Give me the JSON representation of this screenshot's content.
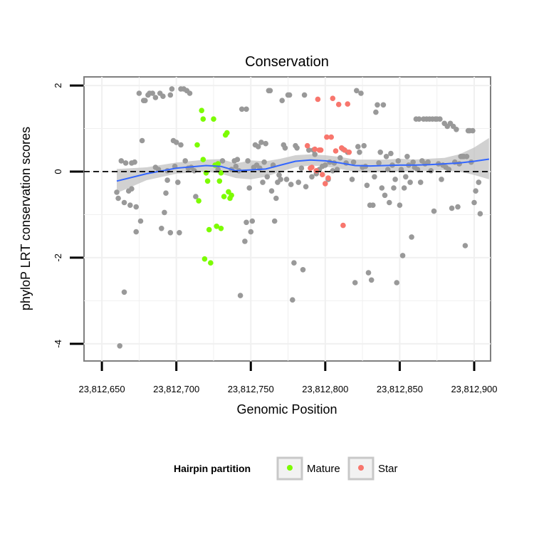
{
  "chart_data": {
    "type": "scatter",
    "title": "Conservation",
    "xlabel": "Genomic Position",
    "ylabel": "phyloP LRT conservation scores",
    "xlim": [
      23812638,
      23812911
    ],
    "ylim": [
      -4.4,
      2.2
    ],
    "x_ticks": [
      23812650,
      23812700,
      23812750,
      23812800,
      23812850,
      23812900
    ],
    "x_tick_labels": [
      "23,812,650",
      "23,812,700",
      "23,812,750",
      "23,812,800",
      "23,812,850",
      "23,812,900"
    ],
    "y_ticks": [
      -4,
      -2,
      0,
      2
    ],
    "y_tick_labels": [
      "-4",
      "-2",
      "0",
      "2"
    ],
    "grid": true,
    "reference_line": {
      "y": 0,
      "style": "dashed"
    },
    "legend": {
      "title": "Hairpin partition",
      "placement": "bottom",
      "entries": [
        {
          "label": "Mature",
          "color": "#7cfc00"
        },
        {
          "label": "Star",
          "color": "#f8766d"
        }
      ]
    },
    "colors": {
      "other": "#999999",
      "smooth_line": "#3366ff",
      "confidence_band": "#bdbdbd"
    },
    "series": [
      {
        "name": "Mature",
        "color": "#7cfc00",
        "points": [
          [
            23812714,
            0.62
          ],
          [
            23812715,
            -0.68
          ],
          [
            23812717,
            1.42
          ],
          [
            23812718,
            0.28
          ],
          [
            23812718,
            1.22
          ],
          [
            23812719,
            -2.03
          ],
          [
            23812720,
            -0.03
          ],
          [
            23812721,
            -0.22
          ],
          [
            23812722,
            -1.35
          ],
          [
            23812723,
            -2.12
          ],
          [
            23812725,
            1.22
          ],
          [
            23812726,
            0.15
          ],
          [
            23812727,
            -1.27
          ],
          [
            23812728,
            0.18
          ],
          [
            23812729,
            -0.22
          ],
          [
            23812730,
            -0.03
          ],
          [
            23812730,
            -1.32
          ],
          [
            23812732,
            -0.58
          ],
          [
            23812733,
            0.85
          ],
          [
            23812734,
            0.9
          ],
          [
            23812735,
            -0.47
          ],
          [
            23812736,
            -0.62
          ],
          [
            23812737,
            -0.55
          ]
        ]
      },
      {
        "name": "Star",
        "color": "#f8766d",
        "points": [
          [
            23812788,
            0.6
          ],
          [
            23812790,
            0.08
          ],
          [
            23812791,
            0.1
          ],
          [
            23812793,
            0.52
          ],
          [
            23812794,
            0.02
          ],
          [
            23812795,
            1.68
          ],
          [
            23812796,
            0.5
          ],
          [
            23812797,
            0.5
          ],
          [
            23812798,
            -0.07
          ],
          [
            23812800,
            -0.28
          ],
          [
            23812801,
            0.8
          ],
          [
            23812802,
            -0.15
          ],
          [
            23812804,
            0.8
          ],
          [
            23812805,
            1.7
          ],
          [
            23812807,
            0.48
          ],
          [
            23812809,
            1.56
          ],
          [
            23812811,
            0.55
          ],
          [
            23812812,
            -1.25
          ],
          [
            23812813,
            0.5
          ],
          [
            23812815,
            1.57
          ],
          [
            23812816,
            0.45
          ]
        ]
      },
      {
        "name": "",
        "color": "#999999",
        "points": [
          [
            23812660,
            -0.48
          ],
          [
            23812661,
            -0.62
          ],
          [
            23812662,
            -4.05
          ],
          [
            23812663,
            0.25
          ],
          [
            23812665,
            -2.8
          ],
          [
            23812665,
            -0.72
          ],
          [
            23812666,
            0.2
          ],
          [
            23812668,
            -0.45
          ],
          [
            23812669,
            -0.78
          ],
          [
            23812670,
            -0.4
          ],
          [
            23812670,
            0.2
          ],
          [
            23812672,
            0.22
          ],
          [
            23812673,
            -0.82
          ],
          [
            23812673,
            -1.4
          ],
          [
            23812675,
            1.82
          ],
          [
            23812676,
            -1.15
          ],
          [
            23812677,
            0.72
          ],
          [
            23812678,
            1.65
          ],
          [
            23812679,
            1.65
          ],
          [
            23812681,
            1.78
          ],
          [
            23812682,
            1.82
          ],
          [
            23812684,
            1.82
          ],
          [
            23812686,
            1.72
          ],
          [
            23812686,
            0.1
          ],
          [
            23812688,
            0.05
          ],
          [
            23812689,
            1.82
          ],
          [
            23812690,
            -1.32
          ],
          [
            23812691,
            1.75
          ],
          [
            23812692,
            -0.95
          ],
          [
            23812693,
            -0.5
          ],
          [
            23812694,
            -0.2
          ],
          [
            23812694,
            0.02
          ],
          [
            23812696,
            1.78
          ],
          [
            23812696,
            -1.42
          ],
          [
            23812697,
            1.92
          ],
          [
            23812698,
            0.72
          ],
          [
            23812699,
            0.12
          ],
          [
            23812700,
            0.68
          ],
          [
            23812701,
            -0.25
          ],
          [
            23812702,
            -1.42
          ],
          [
            23812703,
            1.92
          ],
          [
            23812703,
            0.62
          ],
          [
            23812705,
            1.92
          ],
          [
            23812706,
            0.25
          ],
          [
            23812707,
            1.88
          ],
          [
            23812708,
            0.08
          ],
          [
            23812709,
            1.82
          ],
          [
            23812710,
            0.1
          ],
          [
            23812712,
            0.02
          ],
          [
            23812713,
            -0.58
          ],
          [
            23812728,
            0.05
          ],
          [
            23812731,
            0.25
          ],
          [
            23812737,
            0.05
          ],
          [
            23812739,
            0.25
          ],
          [
            23812740,
            0.12
          ],
          [
            23812741,
            0.28
          ],
          [
            23812742,
            0.02
          ],
          [
            23812743,
            -2.88
          ],
          [
            23812744,
            1.45
          ],
          [
            23812746,
            -1.62
          ],
          [
            23812747,
            -1.18
          ],
          [
            23812747,
            1.45
          ],
          [
            23812748,
            0.25
          ],
          [
            23812749,
            -0.38
          ],
          [
            23812750,
            -1.4
          ],
          [
            23812751,
            -1.15
          ],
          [
            23812752,
            0.1
          ],
          [
            23812753,
            0.62
          ],
          [
            23812754,
            0.15
          ],
          [
            23812755,
            0.58
          ],
          [
            23812756,
            0.08
          ],
          [
            23812757,
            0.68
          ],
          [
            23812758,
            -0.25
          ],
          [
            23812759,
            0.22
          ],
          [
            23812760,
            0.65
          ],
          [
            23812761,
            -0.12
          ],
          [
            23812762,
            1.88
          ],
          [
            23812763,
            1.88
          ],
          [
            23812764,
            -0.45
          ],
          [
            23812765,
            0.15
          ],
          [
            23812766,
            -1.15
          ],
          [
            23812767,
            -0.62
          ],
          [
            23812768,
            -0.25
          ],
          [
            23812769,
            -0.08
          ],
          [
            23812770,
            -0.18
          ],
          [
            23812771,
            1.65
          ],
          [
            23812772,
            0.62
          ],
          [
            23812773,
            0.55
          ],
          [
            23812774,
            -0.18
          ],
          [
            23812775,
            1.78
          ],
          [
            23812776,
            1.78
          ],
          [
            23812777,
            -0.3
          ],
          [
            23812778,
            -2.98
          ],
          [
            23812779,
            -2.12
          ],
          [
            23812780,
            0.6
          ],
          [
            23812781,
            0.55
          ],
          [
            23812782,
            -0.25
          ],
          [
            23812784,
            0.08
          ],
          [
            23812785,
            -2.28
          ],
          [
            23812786,
            1.78
          ],
          [
            23812787,
            -0.35
          ],
          [
            23812789,
            0.5
          ],
          [
            23812791,
            -0.12
          ],
          [
            23812792,
            0.5
          ],
          [
            23812793,
            0.4
          ],
          [
            23812794,
            -0.05
          ],
          [
            23812796,
            0.05
          ],
          [
            23812798,
            0.12
          ],
          [
            23812800,
            0.15
          ],
          [
            23812802,
            -0.18
          ],
          [
            23812803,
            0.22
          ],
          [
            23812805,
            0.02
          ],
          [
            23812806,
            0.2
          ],
          [
            23812808,
            0.05
          ],
          [
            23812810,
            0.32
          ],
          [
            23812812,
            0.52
          ],
          [
            23812814,
            0.2
          ],
          [
            23812815,
            0.45
          ],
          [
            23812818,
            -0.18
          ],
          [
            23812819,
            0.22
          ],
          [
            23812820,
            -2.58
          ],
          [
            23812821,
            1.88
          ],
          [
            23812822,
            0.58
          ],
          [
            23812823,
            0.45
          ],
          [
            23812824,
            1.82
          ],
          [
            23812825,
            0.1
          ],
          [
            23812826,
            0.6
          ],
          [
            23812827,
            0.12
          ],
          [
            23812828,
            -0.32
          ],
          [
            23812829,
            -2.35
          ],
          [
            23812830,
            -0.78
          ],
          [
            23812831,
            -2.52
          ],
          [
            23812832,
            -0.78
          ],
          [
            23812833,
            -0.12
          ],
          [
            23812834,
            1.38
          ],
          [
            23812835,
            1.55
          ],
          [
            23812836,
            0.2
          ],
          [
            23812837,
            0.45
          ],
          [
            23812838,
            -0.38
          ],
          [
            23812839,
            1.55
          ],
          [
            23812840,
            -0.55
          ],
          [
            23812841,
            0.35
          ],
          [
            23812842,
            0.05
          ],
          [
            23812843,
            -0.72
          ],
          [
            23812844,
            0.42
          ],
          [
            23812845,
            0.15
          ],
          [
            23812846,
            -0.38
          ],
          [
            23812847,
            -0.18
          ],
          [
            23812848,
            -2.58
          ],
          [
            23812849,
            0.25
          ],
          [
            23812850,
            -0.78
          ],
          [
            23812851,
            0.05
          ],
          [
            23812852,
            -1.95
          ],
          [
            23812853,
            -0.38
          ],
          [
            23812854,
            -0.12
          ],
          [
            23812855,
            0.35
          ],
          [
            23812856,
            0.15
          ],
          [
            23812857,
            -0.25
          ],
          [
            23812858,
            -1.52
          ],
          [
            23812859,
            0.22
          ],
          [
            23812860,
            0.1
          ],
          [
            23812861,
            1.22
          ],
          [
            23812862,
            0.05
          ],
          [
            23812863,
            1.22
          ],
          [
            23812864,
            -0.25
          ],
          [
            23812865,
            0.25
          ],
          [
            23812866,
            1.22
          ],
          [
            23812867,
            0.18
          ],
          [
            23812868,
            1.22
          ],
          [
            23812869,
            0.22
          ],
          [
            23812870,
            1.22
          ],
          [
            23812871,
            0.02
          ],
          [
            23812872,
            1.22
          ],
          [
            23812873,
            -0.92
          ],
          [
            23812874,
            1.22
          ],
          [
            23812875,
            1.22
          ],
          [
            23812876,
            0.18
          ],
          [
            23812877,
            1.22
          ],
          [
            23812878,
            -0.18
          ],
          [
            23812879,
            0.15
          ],
          [
            23812880,
            1.12
          ],
          [
            23812881,
            0.1
          ],
          [
            23812882,
            1.05
          ],
          [
            23812883,
            0.05
          ],
          [
            23812884,
            1.12
          ],
          [
            23812885,
            -0.85
          ],
          [
            23812886,
            1.05
          ],
          [
            23812887,
            0.22
          ],
          [
            23812888,
            0.98
          ],
          [
            23812889,
            -0.82
          ],
          [
            23812890,
            0.18
          ],
          [
            23812891,
            0.35
          ],
          [
            23812892,
            0.35
          ],
          [
            23812893,
            0.35
          ],
          [
            23812894,
            -1.72
          ],
          [
            23812895,
            0.35
          ],
          [
            23812896,
            0.95
          ],
          [
            23812897,
            0.95
          ],
          [
            23812898,
            0.22
          ],
          [
            23812899,
            0.95
          ],
          [
            23812900,
            -0.72
          ],
          [
            23812901,
            -0.45
          ],
          [
            23812903,
            -0.25
          ],
          [
            23812904,
            -0.98
          ]
        ]
      }
    ],
    "smooth_fit": {
      "x": [
        23812660,
        23812680,
        23812700,
        23812720,
        23812730,
        23812740,
        23812750,
        23812760,
        23812770,
        23812780,
        23812790,
        23812800,
        23812810,
        23812820,
        23812830,
        23812840,
        23812850,
        23812860,
        23812870,
        23812880,
        23812890,
        23812900,
        23812910
      ],
      "y": [
        -0.22,
        -0.05,
        0.08,
        0.14,
        0.12,
        0.02,
        0.04,
        0.06,
        0.15,
        0.24,
        0.27,
        0.25,
        0.2,
        0.14,
        0.13,
        0.14,
        0.15,
        0.15,
        0.16,
        0.18,
        0.2,
        0.24,
        0.29
      ],
      "lower": [
        -0.5,
        -0.2,
        -0.05,
        0.0,
        -0.05,
        -0.15,
        -0.18,
        -0.12,
        0.0,
        0.1,
        0.14,
        0.12,
        0.06,
        0.0,
        -0.02,
        0.0,
        0.0,
        0.02,
        0.02,
        0.04,
        0.0,
        -0.08,
        -0.18
      ],
      "upper": [
        0.06,
        0.1,
        0.21,
        0.28,
        0.29,
        0.19,
        0.26,
        0.24,
        0.3,
        0.38,
        0.4,
        0.38,
        0.34,
        0.28,
        0.28,
        0.28,
        0.3,
        0.28,
        0.3,
        0.32,
        0.4,
        0.56,
        0.78
      ]
    }
  }
}
